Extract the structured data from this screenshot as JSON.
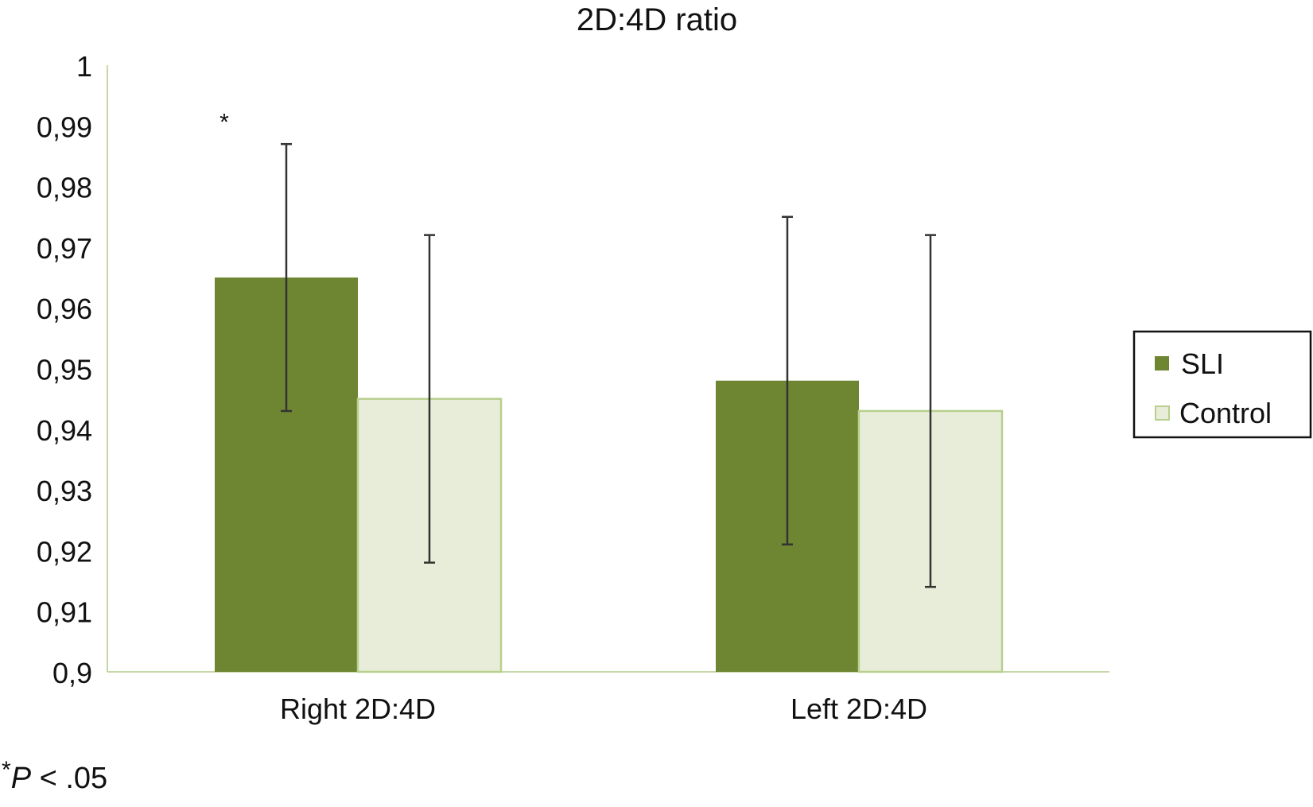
{
  "chart_data": {
    "type": "bar",
    "title": "2D:4D ratio",
    "xlabel": "",
    "ylabel": "",
    "categories": [
      "Right 2D:4D",
      "Left 2D:4D"
    ],
    "series": [
      {
        "name": "SLI",
        "values": [
          0.965,
          0.948
        ],
        "error_low": [
          0.943,
          0.921
        ],
        "error_high": [
          0.987,
          0.975
        ],
        "color": "#6e8532"
      },
      {
        "name": "Control",
        "values": [
          0.945,
          0.943
        ],
        "error_low": [
          0.918,
          0.914
        ],
        "error_high": [
          0.972,
          0.972
        ],
        "color": "#e7edd8",
        "border_color": "#b8cf8e"
      }
    ],
    "ylim": [
      0.9,
      1.0
    ],
    "yticks": [
      "0,9",
      "0,91",
      "0,92",
      "0,93",
      "0,94",
      "0,95",
      "0,96",
      "0,97",
      "0,98",
      "0,99",
      "1"
    ],
    "annotations": [
      {
        "text": "*",
        "category": "Right 2D:4D",
        "series": "SLI",
        "y": 0.99
      }
    ],
    "legend": {
      "position": "right",
      "boxed": true
    },
    "grid": false,
    "axis_color": "#c6d6a6"
  },
  "footnote": {
    "symbol": "*",
    "variable": "P",
    "rest": " < .05"
  }
}
